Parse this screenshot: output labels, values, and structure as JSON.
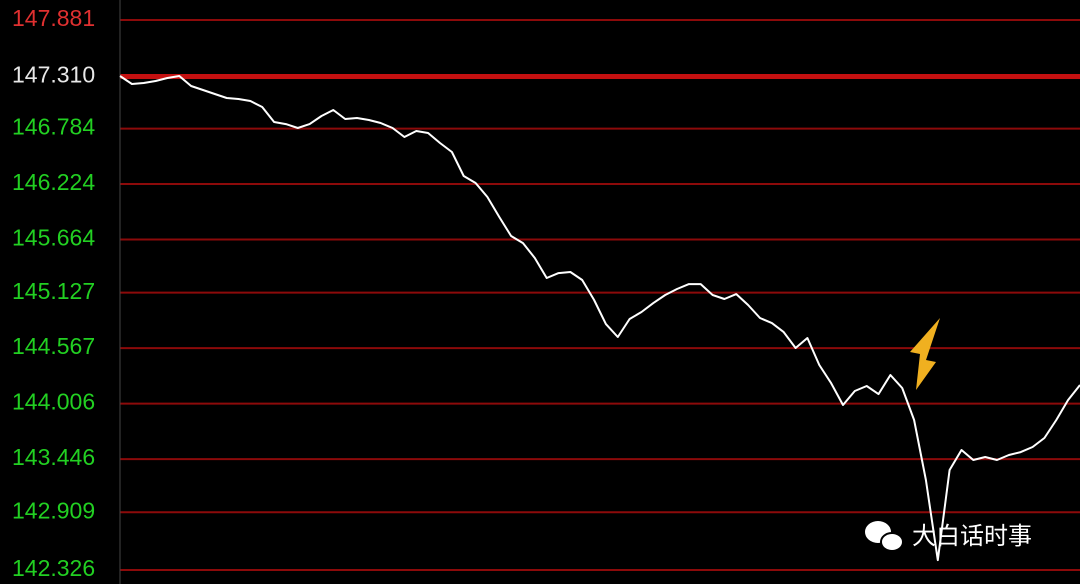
{
  "chart_data": {
    "type": "line",
    "ylim": [
      142.326,
      147.881
    ],
    "yticks": [
      147.881,
      {
        "value": 147.31,
        "label": "147.310"
      },
      146.784,
      146.224,
      145.664,
      145.127,
      144.567,
      144.006,
      143.446,
      142.909,
      142.326
    ],
    "grid": true,
    "grid_color": "#8c0a0a",
    "baseline": 147.31,
    "baseline_color": "#c41010",
    "up_color": "#e03030",
    "flat_color": "#e8e8e8",
    "down_color": "#22d022",
    "series": [
      {
        "color": "#ffffff",
        "values": [
          147.315,
          147.235,
          147.245,
          147.265,
          147.295,
          147.315,
          147.214,
          147.174,
          147.134,
          147.093,
          147.083,
          147.063,
          147.002,
          146.851,
          146.83,
          146.79,
          146.83,
          146.911,
          146.972,
          146.881,
          146.891,
          146.871,
          146.841,
          146.79,
          146.699,
          146.76,
          146.74,
          146.639,
          146.548,
          146.305,
          146.235,
          146.093,
          145.891,
          145.699,
          145.628,
          145.477,
          145.275,
          145.325,
          145.336,
          145.255,
          145.053,
          144.81,
          144.679,
          144.861,
          144.932,
          145.022,
          145.103,
          145.164,
          145.214,
          145.214,
          145.103,
          145.063,
          145.113,
          145.002,
          144.871,
          144.82,
          144.729,
          144.568,
          144.669,
          144.396,
          144.214,
          143.992,
          144.134,
          144.184,
          144.103,
          144.295,
          144.164,
          143.841,
          143.235,
          142.426,
          143.336,
          143.538,
          143.437,
          143.467,
          143.437,
          143.487,
          143.517,
          143.568,
          143.659,
          143.841,
          144.043,
          144.194
        ]
      }
    ],
    "watermark": "大白话时事"
  }
}
